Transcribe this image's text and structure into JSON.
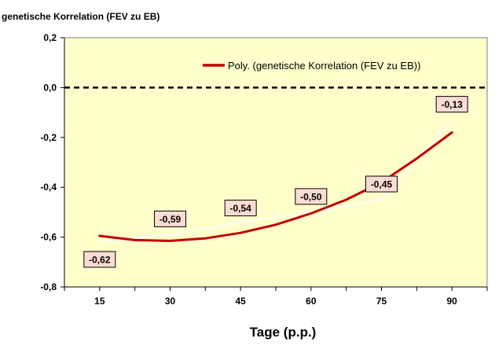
{
  "chart_data": {
    "type": "line",
    "title": "",
    "ylabel": "genetische Korrelation (FEV zu EB)",
    "xlabel": "Tage (p.p.)",
    "x": [
      15,
      30,
      45,
      60,
      75,
      90
    ],
    "xlim": [
      7.5,
      97.5
    ],
    "ylim": [
      -0.8,
      0.2
    ],
    "yticks": [
      0.2,
      0.0,
      -0.2,
      -0.4,
      -0.6,
      -0.8
    ],
    "ytick_labels": [
      "0,2",
      "0,0",
      "-0,2",
      "-0,4",
      "-0,6",
      "-0,8"
    ],
    "xtick_labels": [
      "15",
      "30",
      "45",
      "60",
      "75",
      "90"
    ],
    "reference_line": {
      "y": 0.0,
      "style": "dashed",
      "color": "#000000"
    },
    "raw_series": {
      "values": [
        -0.62,
        -0.59,
        -0.54,
        -0.5,
        -0.45,
        -0.13
      ],
      "labels": [
        "-0,62",
        "-0,59",
        "-0,54",
        "-0,50",
        "-0,45",
        "-0,13"
      ],
      "color": "#ffffff"
    },
    "series": [
      {
        "name": "Poly. (genetische Korrelation (FEV zu EB))",
        "type": "poly-trendline",
        "color": "#c00000",
        "points": [
          [
            15,
            -0.595
          ],
          [
            22.5,
            -0.612
          ],
          [
            30,
            -0.615
          ],
          [
            37.5,
            -0.605
          ],
          [
            45,
            -0.583
          ],
          [
            52.5,
            -0.55
          ],
          [
            60,
            -0.505
          ],
          [
            67.5,
            -0.45
          ],
          [
            75,
            -0.38
          ],
          [
            82.5,
            -0.285
          ],
          [
            90,
            -0.18
          ]
        ]
      }
    ],
    "legend": {
      "position": "top-right"
    },
    "colors": {
      "plot_background": "#ffffcc",
      "label_box": "#fadcd2"
    },
    "grid": false
  }
}
